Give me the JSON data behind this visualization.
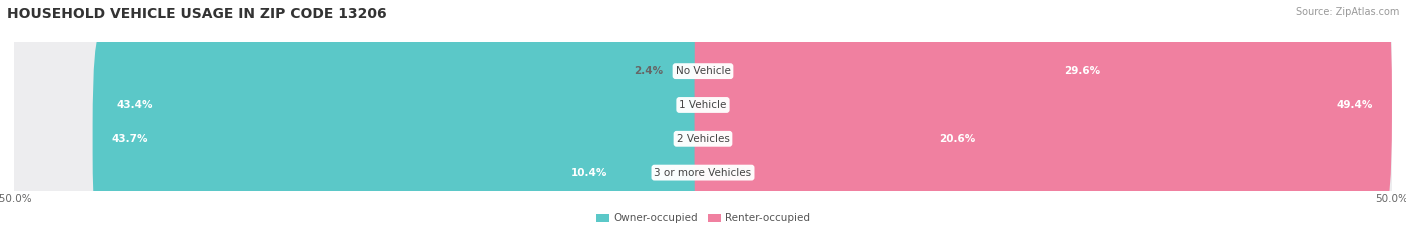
{
  "title": "HOUSEHOLD VEHICLE USAGE IN ZIP CODE 13206",
  "source": "Source: ZipAtlas.com",
  "categories": [
    "No Vehicle",
    "1 Vehicle",
    "2 Vehicles",
    "3 or more Vehicles"
  ],
  "owner_values": [
    2.4,
    43.4,
    43.7,
    10.4
  ],
  "renter_values": [
    29.6,
    49.4,
    20.6,
    0.38
  ],
  "owner_color": "#5BC8C8",
  "renter_color": "#F080A0",
  "bar_bg_color": "#EDEDEF",
  "x_max": 50.0,
  "legend_owner": "Owner-occupied",
  "legend_renter": "Renter-occupied",
  "title_fontsize": 10,
  "label_fontsize": 7.5,
  "category_fontsize": 7.5,
  "source_fontsize": 7
}
